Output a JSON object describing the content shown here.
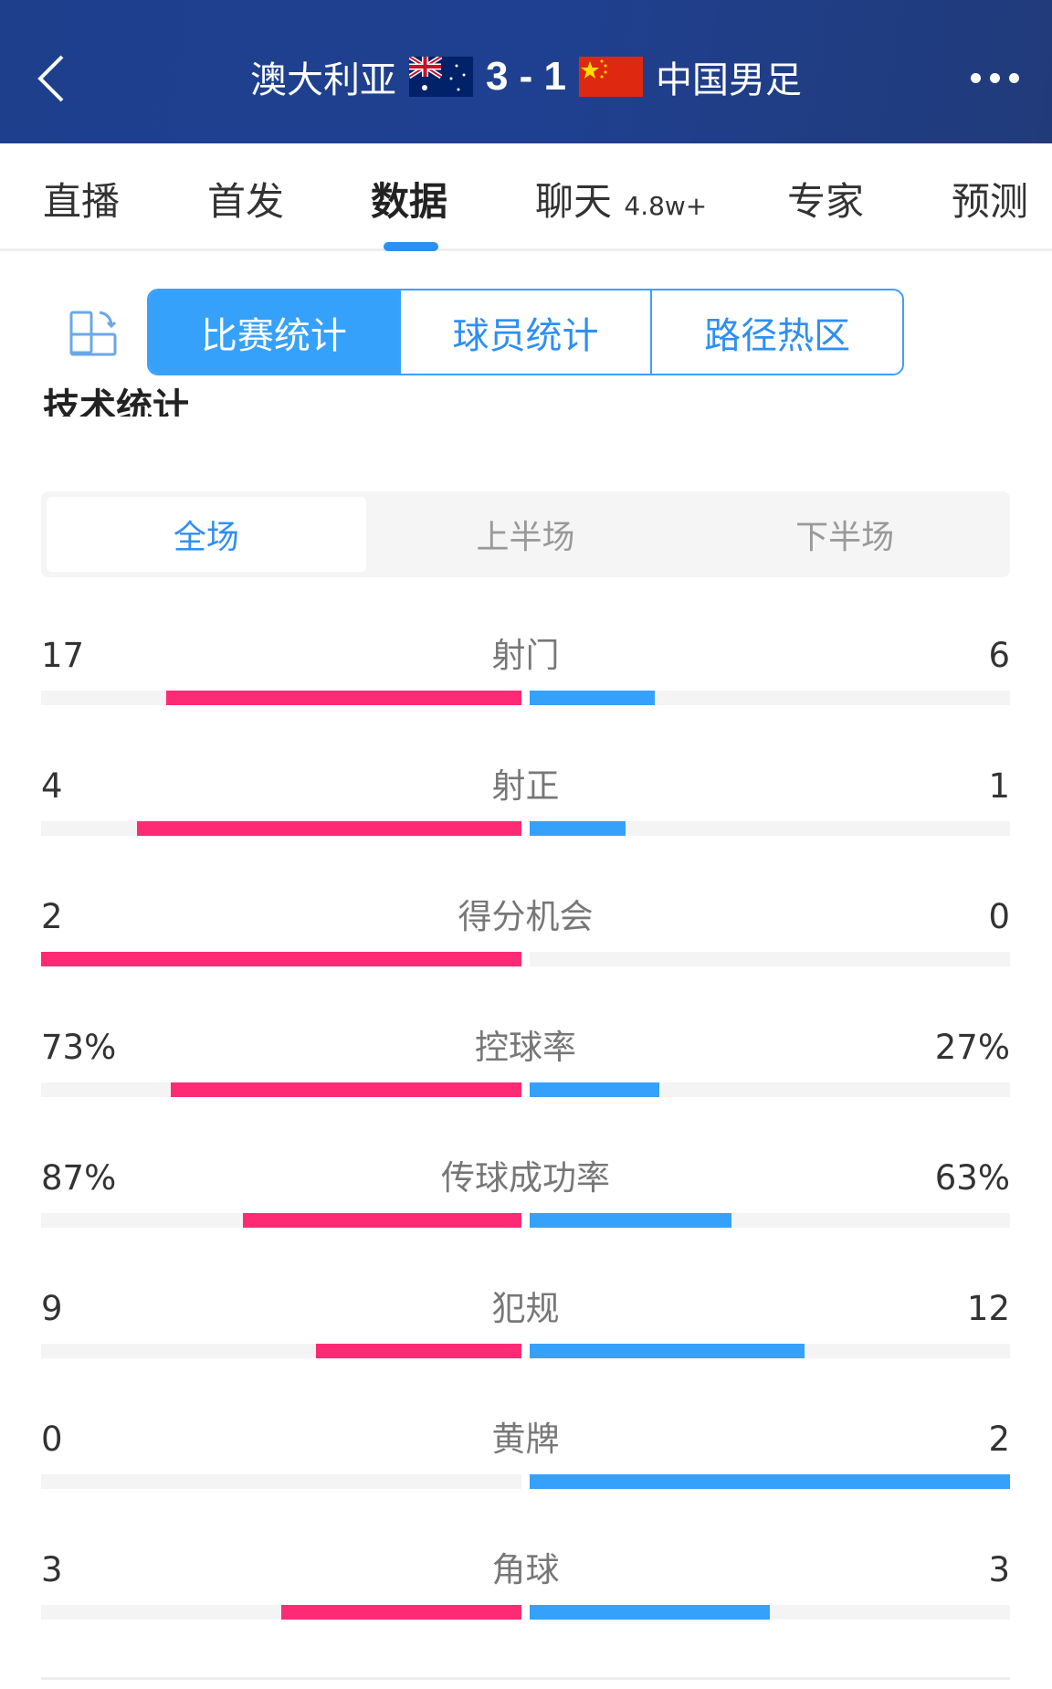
{
  "header": {
    "home_team": "澳大利亚",
    "score": "3 - 1",
    "away_team": "中国男足"
  },
  "tabs": [
    {
      "label": "直播"
    },
    {
      "label": "首发"
    },
    {
      "label": "数据",
      "active": true
    },
    {
      "label": "聊天",
      "badge": "4.8w+"
    },
    {
      "label": "专家"
    },
    {
      "label": "预测"
    }
  ],
  "segments": [
    "比赛统计",
    "球员统计",
    "路径热区"
  ],
  "section_title": "技术统计",
  "periods": [
    "全场",
    "上半场",
    "下半场"
  ],
  "colors": {
    "home": "#ff2a74",
    "away": "#36a1fb",
    "accent": "#2f8ff0",
    "header": "#1f4090"
  },
  "stats": [
    {
      "label": "射门",
      "home": "17",
      "away": "6",
      "home_val": 17,
      "away_val": 6
    },
    {
      "label": "射正",
      "home": "4",
      "away": "1",
      "home_val": 4,
      "away_val": 1
    },
    {
      "label": "得分机会",
      "home": "2",
      "away": "0",
      "home_val": 2,
      "away_val": 0
    },
    {
      "label": "控球率",
      "home": "73%",
      "away": "27%",
      "home_val": 73,
      "away_val": 27
    },
    {
      "label": "传球成功率",
      "home": "87%",
      "away": "63%",
      "home_val": 87,
      "away_val": 63
    },
    {
      "label": "犯规",
      "home": "9",
      "away": "12",
      "home_val": 9,
      "away_val": 12
    },
    {
      "label": "黄牌",
      "home": "0",
      "away": "2",
      "home_val": 0,
      "away_val": 2
    },
    {
      "label": "角球",
      "home": "3",
      "away": "3",
      "home_val": 3,
      "away_val": 3
    }
  ]
}
